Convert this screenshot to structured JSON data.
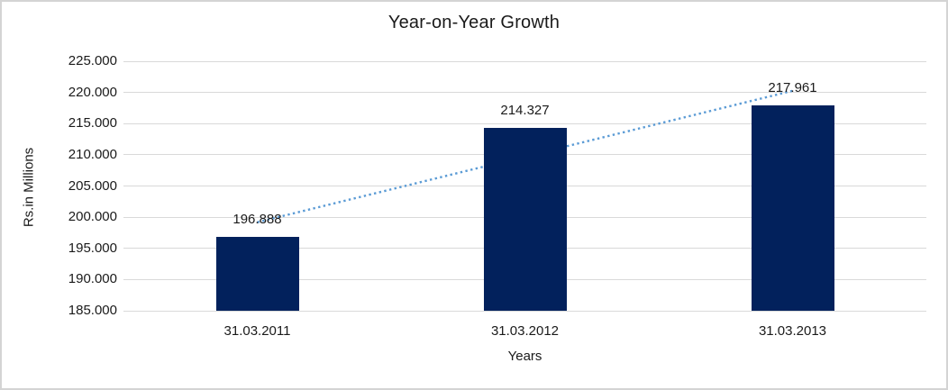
{
  "chart_data": {
    "type": "bar",
    "title": "Year-on-Year Growth",
    "xlabel": "Years",
    "ylabel": "Rs.in Millions",
    "categories": [
      "31.03.2011",
      "31.03.2012",
      "31.03.2013"
    ],
    "values": [
      196.888,
      214.327,
      217.961
    ],
    "data_labels": [
      "196.888",
      "214.327",
      "217.961"
    ],
    "ylim": [
      185,
      225
    ],
    "ytick_step": 5,
    "ytick_labels": [
      "185.000",
      "190.000",
      "195.000",
      "200.000",
      "205.000",
      "210.000",
      "215.000",
      "220.000",
      "225.000"
    ],
    "grid": true,
    "legend": "none",
    "trendline": {
      "type": "linear",
      "style": "dotted"
    },
    "colors": {
      "bar": "#02215C",
      "trendline": "#5B9BD5",
      "gridline": "#D9D9D9",
      "axis_line": "#D9D9D9",
      "text": "#1A1A1A",
      "frame_border": "#D4D4D4",
      "background": "#FFFFFF"
    }
  }
}
